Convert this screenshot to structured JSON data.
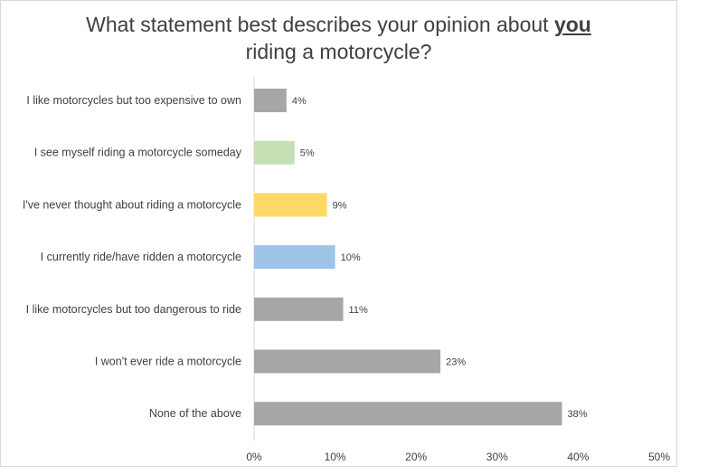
{
  "chart_data": {
    "type": "bar",
    "orientation": "horizontal",
    "title_parts": [
      "What statement best describes your opinion about ",
      "you",
      "riding a motorcycle?"
    ],
    "categories": [
      "I like motorcycles but too expensive to own",
      "I see myself riding a motorcycle someday",
      "I've never thought about riding a motorcycle",
      "I currently ride/have ridden a motorcycle",
      "I like motorcycles but too dangerous to ride",
      "I won't ever ride a motorcycle",
      "None of the above"
    ],
    "values": [
      4,
      5,
      9,
      10,
      11,
      23,
      38
    ],
    "value_labels": [
      "4%",
      "5%",
      "9%",
      "10%",
      "11%",
      "23%",
      "38%"
    ],
    "colors": [
      "#a6a6a6",
      "#c5e0b4",
      "#ffd966",
      "#9dc3e6",
      "#a6a6a6",
      "#a6a6a6",
      "#a6a6a6"
    ],
    "xlim": [
      0,
      50
    ],
    "xticks": [
      0,
      10,
      20,
      30,
      40,
      50
    ],
    "xtick_labels": [
      "0%",
      "10%",
      "20%",
      "30%",
      "40%",
      "50%"
    ],
    "grid": false
  }
}
